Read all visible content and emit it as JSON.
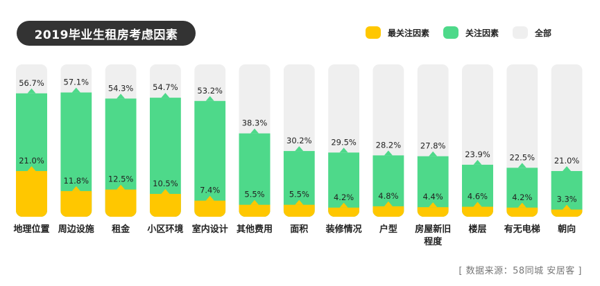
{
  "title": "2019毕业生租房考虑因素",
  "legend": [
    {
      "label": "最关注因素",
      "color": "#FFC700"
    },
    {
      "label": "关注因素",
      "color": "#4ED98A"
    },
    {
      "label": "全部",
      "color": "#EFEFEF"
    }
  ],
  "source": "[ 数据来源：58同城  安居客 ]",
  "chart_data": {
    "type": "bar",
    "categories": [
      "地理位置",
      "周边设施",
      "租金",
      "小区环境",
      "室内设计",
      "其他费用",
      "面积",
      "装修情况",
      "户型",
      "房屋新旧\n程度",
      "楼层",
      "有无电梯",
      "朝向"
    ],
    "ylim": [
      0,
      70
    ],
    "series": [
      {
        "name": "最关注因素",
        "color": "#FFC700",
        "values": [
          21.0,
          11.8,
          12.5,
          10.5,
          7.4,
          5.5,
          5.5,
          4.2,
          4.8,
          4.4,
          4.6,
          4.2,
          3.3
        ]
      },
      {
        "name": "关注因素",
        "color": "#4ED98A",
        "values": [
          56.7,
          57.1,
          54.3,
          54.7,
          53.2,
          38.3,
          30.2,
          29.5,
          28.2,
          27.8,
          23.9,
          22.5,
          21.0
        ]
      }
    ],
    "value_labels": {
      "最关注因素": [
        "21.0%",
        "11.8%",
        "12.5%",
        "10.5%",
        "7.4%",
        "5.5%",
        "5.5%",
        "4.2%",
        "4.8%",
        "4.4%",
        "4.6%",
        "4.2%",
        "3.3%"
      ],
      "关注因素": [
        "56.7%",
        "57.1%",
        "54.3%",
        "54.7%",
        "53.2%",
        "38.3%",
        "30.2%",
        "29.5%",
        "28.2%",
        "27.8%",
        "23.9%",
        "22.5%",
        "21.0%"
      ]
    }
  }
}
